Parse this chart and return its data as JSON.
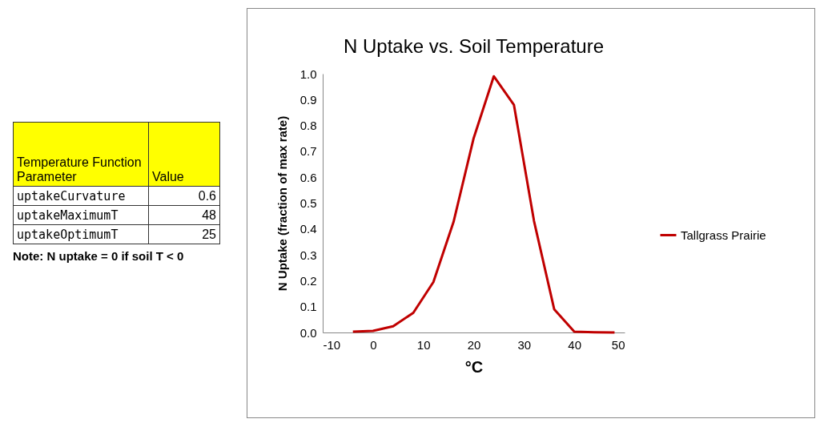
{
  "chart_data": [
    {
      "type": "other",
      "categories": [
        "uptakeCurvature",
        "uptakeMaximumT",
        "uptakeOptimumT"
      ],
      "values": [
        0.6,
        48,
        25
      ],
      "data_labels": true,
      "xlabel": "Temperature Function Parameter",
      "ylabel": "Value",
      "annotations": [
        "Note: N uptake = 0 if soil T < 0"
      ]
    },
    {
      "type": "line",
      "title": "N Uptake vs. Soil Temperature",
      "xlabel": "°C",
      "ylabel": "N Uptake (fraction of max rate)",
      "x": [
        -4,
        0,
        4,
        8,
        12,
        16,
        20,
        24,
        28,
        32,
        36,
        40,
        44,
        48
      ],
      "series": [
        {
          "name": "Tallgrass Prairie",
          "color": "#c00000",
          "values": [
            0.003,
            0.006,
            0.024,
            0.076,
            0.195,
            0.427,
            0.751,
            0.99,
            0.88,
            0.43,
            0.09,
            0.003,
            0.001,
            0
          ]
        }
      ],
      "xlim": [
        -10,
        50
      ],
      "xticks": [
        -10,
        0,
        10,
        20,
        30,
        40,
        50
      ],
      "ylim": [
        0,
        1
      ],
      "yticks": [
        {
          "value": 0,
          "label": "0.0"
        },
        0.1,
        0.2,
        0.3,
        0.4,
        0.5,
        0.6,
        0.7,
        0.8,
        0.9,
        {
          "value": 1,
          "label": "1.0"
        }
      ],
      "grid": false,
      "legend": "right",
      "marker": "none",
      "line_style": "solid"
    }
  ]
}
